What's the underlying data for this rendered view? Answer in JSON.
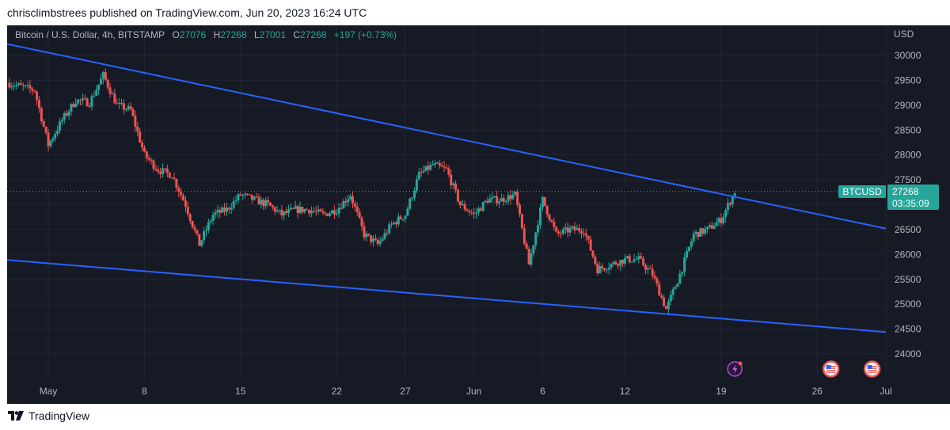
{
  "header": {
    "published": "chrisclimbstrees published on TradingView.com, Jun 20, 2023 16:24 UTC"
  },
  "legend": {
    "symbol": "Bitcoin / U.S. Dollar, 4h, BITSTAMP",
    "o_label": "O",
    "o_value": "27076",
    "h_label": "H",
    "h_value": "27268",
    "l_label": "L",
    "l_value": "27001",
    "c_label": "C",
    "c_value": "27268",
    "change": "+197 (+0.73%)"
  },
  "price_tag": {
    "symbol": "BTCUSD",
    "price": "27268",
    "countdown": "03:35:09"
  },
  "footer": {
    "brand": "TradingView"
  },
  "colors": {
    "up": "#26a69a",
    "down": "#ef5350",
    "trendline": "#2962ff",
    "background": "#161a25",
    "grid": "#232632"
  },
  "chart_data": {
    "type": "candlestick",
    "title": "Bitcoin / U.S. Dollar, 4h, BITSTAMP",
    "currency_label": "USD",
    "ylim": [
      23700,
      30500
    ],
    "y_ticks": [
      "30000",
      "29500",
      "29000",
      "28500",
      "28000",
      "27500",
      "27000",
      "26500",
      "26000",
      "25500",
      "25000",
      "24500",
      "24000"
    ],
    "x_ticks": [
      {
        "label": "May",
        "date": "2023-05-01"
      },
      {
        "label": "8",
        "date": "2023-05-08"
      },
      {
        "label": "15",
        "date": "2023-05-15"
      },
      {
        "label": "22",
        "date": "2023-05-22"
      },
      {
        "label": "27",
        "date": "2023-05-27"
      },
      {
        "label": "Jun",
        "date": "2023-06-01"
      },
      {
        "label": "6",
        "date": "2023-06-06"
      },
      {
        "label": "12",
        "date": "2023-06-12"
      },
      {
        "label": "19",
        "date": "2023-06-19"
      },
      {
        "label": "26",
        "date": "2023-06-26"
      },
      {
        "label": "Jul",
        "date": "2023-07-01"
      }
    ],
    "x_range": [
      "2023-04-28",
      "2023-07-01"
    ],
    "close_path": [
      [
        "2023-04-28",
        29450
      ],
      [
        "2023-04-30",
        29300
      ],
      [
        "2023-05-01",
        28200
      ],
      [
        "2023-05-02",
        28700
      ],
      [
        "2023-05-03",
        29100
      ],
      [
        "2023-05-04",
        29050
      ],
      [
        "2023-05-05",
        29600
      ],
      [
        "2023-05-06",
        29000
      ],
      [
        "2023-05-07",
        28900
      ],
      [
        "2023-05-08",
        28000
      ],
      [
        "2023-05-09",
        27700
      ],
      [
        "2023-05-10",
        27600
      ],
      [
        "2023-05-11",
        27000
      ],
      [
        "2023-05-12",
        26200
      ],
      [
        "2023-05-13",
        26800
      ],
      [
        "2023-05-14",
        26900
      ],
      [
        "2023-05-15",
        27200
      ],
      [
        "2023-05-16",
        27100
      ],
      [
        "2023-05-17",
        27000
      ],
      [
        "2023-05-18",
        26800
      ],
      [
        "2023-05-19",
        26900
      ],
      [
        "2023-05-20",
        26900
      ],
      [
        "2023-05-21",
        26800
      ],
      [
        "2023-05-22",
        26900
      ],
      [
        "2023-05-23",
        27200
      ],
      [
        "2023-05-24",
        26400
      ],
      [
        "2023-05-25",
        26200
      ],
      [
        "2023-05-26",
        26600
      ],
      [
        "2023-05-27",
        26800
      ],
      [
        "2023-05-28",
        27600
      ],
      [
        "2023-05-29",
        27800
      ],
      [
        "2023-05-30",
        27700
      ],
      [
        "2023-05-31",
        27000
      ],
      [
        "2023-06-01",
        26800
      ],
      [
        "2023-06-02",
        27100
      ],
      [
        "2023-06-03",
        27100
      ],
      [
        "2023-06-04",
        27200
      ],
      [
        "2023-06-05",
        25800
      ],
      [
        "2023-06-06",
        27100
      ],
      [
        "2023-06-07",
        26400
      ],
      [
        "2023-06-08",
        26500
      ],
      [
        "2023-06-09",
        26500
      ],
      [
        "2023-06-10",
        25700
      ],
      [
        "2023-06-11",
        25800
      ],
      [
        "2023-06-12",
        25900
      ],
      [
        "2023-06-13",
        25900
      ],
      [
        "2023-06-14",
        25600
      ],
      [
        "2023-06-15",
        24900
      ],
      [
        "2023-06-16",
        25600
      ],
      [
        "2023-06-17",
        26400
      ],
      [
        "2023-06-18",
        26500
      ],
      [
        "2023-06-19",
        26700
      ],
      [
        "2023-06-20",
        27268
      ]
    ],
    "last_price": 27268,
    "trendlines": [
      {
        "name": "",
        "from": [
          "2023-04-28",
          30230
        ],
        "to": [
          "2023-07-01",
          26520
        ]
      },
      {
        "name": "",
        "from": [
          "2023-04-28",
          25890
        ],
        "to": [
          "2023-07-01",
          24440
        ]
      }
    ],
    "event_markers": [
      {
        "date": "2023-06-20",
        "icon": "lightning-icon"
      },
      {
        "date": "2023-06-27",
        "icon": "us-flag-icon"
      },
      {
        "date": "2023-06-30",
        "icon": "us-flag-icon"
      }
    ],
    "grid": true
  }
}
